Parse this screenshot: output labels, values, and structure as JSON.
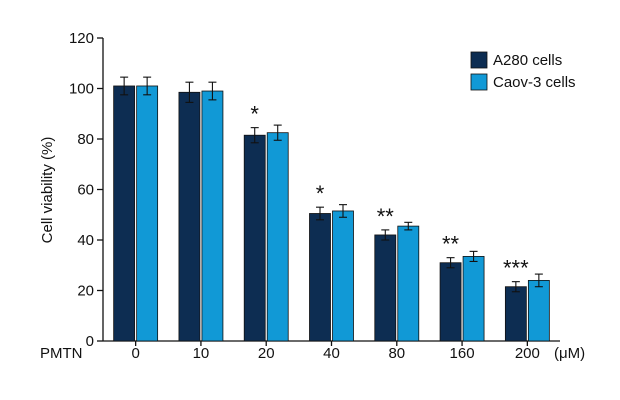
{
  "chart_data": {
    "type": "bar",
    "title": "",
    "ylabel": "Cell viability (%)",
    "xlabel_prefix": "PMTN",
    "x_unit": "(μM)",
    "ylim": [
      0,
      120
    ],
    "yticks": [
      0,
      20,
      40,
      60,
      80,
      100,
      120
    ],
    "grid": false,
    "legend_position": "top-right",
    "categories": [
      "0",
      "10",
      "20",
      "40",
      "80",
      "160",
      "200"
    ],
    "series": [
      {
        "name": "A280 cells",
        "color": "#0d2d52",
        "values": [
          101,
          98.5,
          81.5,
          50.5,
          42,
          31,
          21.5
        ],
        "errors": [
          3.5,
          4,
          3,
          2.5,
          2,
          2,
          2
        ]
      },
      {
        "name": "Caov-3 cells",
        "color": "#1199d6",
        "values": [
          101,
          99,
          82.5,
          51.5,
          45.5,
          33.5,
          24
        ],
        "errors": [
          3.5,
          3.5,
          3,
          2.5,
          1.5,
          2,
          2.5
        ]
      }
    ],
    "significance": [
      "",
      "",
      "*",
      "*",
      "**",
      "**",
      "***"
    ]
  }
}
